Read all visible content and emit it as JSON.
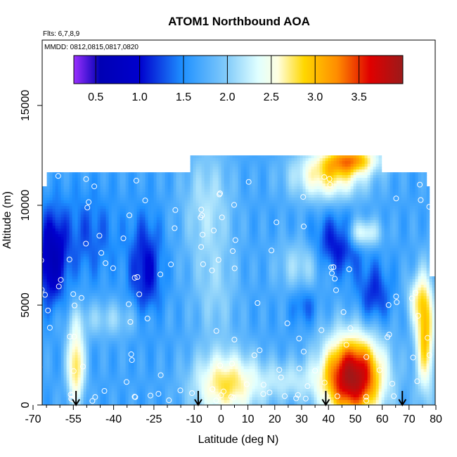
{
  "chart_data": {
    "type": "heatmap",
    "title": "ATOM1 Northbound AOA",
    "annotations": [
      "Flts: 6,7,8,9",
      "MMDD: 0812,0815,0817,0820"
    ],
    "xlabel": "Latitude (deg N)",
    "ylabel": "Altitude (m)",
    "xlim": [
      -70,
      80
    ],
    "ylim": [
      0,
      17500
    ],
    "x_ticks": [
      -70,
      -55,
      -40,
      -25,
      -10,
      0,
      10,
      20,
      30,
      40,
      50,
      60,
      70,
      80
    ],
    "x_tick_labels": [
      "-70",
      "-55",
      "-40",
      "-25",
      "-10",
      "0",
      "10",
      "20",
      "30",
      "40",
      "50",
      "60",
      "70",
      "80"
    ],
    "x_minor_ticks": [
      -65,
      -60,
      -50,
      -45,
      -35,
      -30,
      -20,
      -15,
      -5,
      5,
      15,
      25,
      35,
      45,
      55,
      65,
      75
    ],
    "y_ticks": [
      0,
      5000,
      10000,
      15000
    ],
    "y_tick_labels": [
      "0",
      "5000",
      "10000",
      "15000"
    ],
    "colorbar": {
      "range": [
        0.25,
        4.0
      ],
      "ticks": [
        0.5,
        1.0,
        1.5,
        2.0,
        2.5,
        3.0,
        3.5
      ],
      "tick_labels": [
        "0.5",
        "1.0",
        "1.5",
        "2.0",
        "2.5",
        "3.0",
        "3.5"
      ],
      "placement": "top inside plot"
    },
    "profile_latitudes": [
      -54,
      -8.5,
      39,
      67.5
    ],
    "grid": false,
    "legend": "none"
  }
}
